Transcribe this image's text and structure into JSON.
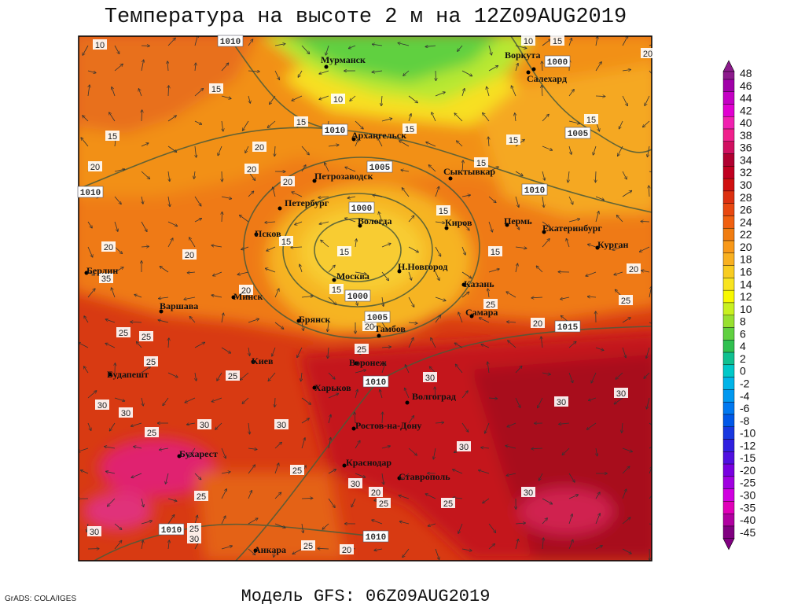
{
  "title": "Температура на высоте 2 м на 12Z09AUG2019",
  "subtitle": "Модель GFS: 06Z09AUG2019",
  "credit": "GrADS: COLA/IGES",
  "cities": [
    "Мурманск",
    "Воркута",
    "Салехард",
    "Архангельск",
    "Петрозаводск",
    "Сыктывкар",
    "Петербург",
    "Вологда",
    "Киров",
    "Пермь",
    "Екатеринбург",
    "Псков",
    "Курган",
    "Берлин",
    "Москва",
    "Н.Новгород",
    "Казань",
    "Варшава",
    "Минск",
    "Самара",
    "Брянск",
    "Тамбов",
    "Воронеж",
    "Киев",
    "Будапешт",
    "Харьков",
    "Волгоград",
    "Ростов-на-Дону",
    "Бухарест",
    "Краснодар",
    "Ставрополь",
    "Анкара"
  ],
  "isobar_labels": [
    1010,
    1000,
    1010,
    1005,
    1010,
    1000,
    1010,
    1005,
    1000,
    1005,
    1015,
    1010,
    1010,
    1010
  ],
  "isotherm_labels": [
    10,
    10,
    15,
    20,
    15,
    10,
    15,
    15,
    15,
    15,
    15,
    20,
    20,
    20,
    15,
    20,
    15,
    20,
    20,
    15,
    15,
    15,
    20,
    35,
    15,
    20,
    25,
    25,
    20,
    20,
    25,
    25,
    25,
    25,
    25,
    30,
    30,
    30,
    30,
    30,
    25,
    30,
    30,
    30,
    25,
    30,
    20,
    25,
    25,
    30,
    25,
    30,
    25,
    30,
    25,
    20
  ],
  "colorbar": {
    "levels": [
      {
        "value": 48,
        "color": "#8c1a8c"
      },
      {
        "value": 46,
        "color": "#a000a8"
      },
      {
        "value": 44,
        "color": "#c400c4"
      },
      {
        "value": 42,
        "color": "#e000d0"
      },
      {
        "value": 40,
        "color": "#f020b0"
      },
      {
        "value": 38,
        "color": "#f0208c"
      },
      {
        "value": 36,
        "color": "#d01060"
      },
      {
        "value": 34,
        "color": "#b00030"
      },
      {
        "value": 32,
        "color": "#c00020"
      },
      {
        "value": 30,
        "color": "#d01010"
      },
      {
        "value": 28,
        "color": "#dc3010"
      },
      {
        "value": 26,
        "color": "#e84810"
      },
      {
        "value": 24,
        "color": "#f06010"
      },
      {
        "value": 22,
        "color": "#f07c10"
      },
      {
        "value": 20,
        "color": "#f89818"
      },
      {
        "value": 18,
        "color": "#f8b020"
      },
      {
        "value": 16,
        "color": "#f8cc20"
      },
      {
        "value": 14,
        "color": "#f8e420"
      },
      {
        "value": 12,
        "color": "#f8f800"
      },
      {
        "value": 10,
        "color": "#c8f020"
      },
      {
        "value": 8,
        "color": "#98e030"
      },
      {
        "value": 6,
        "color": "#60d040"
      },
      {
        "value": 4,
        "color": "#30c050"
      },
      {
        "value": 2,
        "color": "#10c090"
      },
      {
        "value": 0,
        "color": "#00c8c8"
      },
      {
        "value": -2,
        "color": "#00b4e8"
      },
      {
        "value": -4,
        "color": "#0098f0"
      },
      {
        "value": -6,
        "color": "#0078f0"
      },
      {
        "value": -8,
        "color": "#0058e8"
      },
      {
        "value": -10,
        "color": "#1838e0"
      },
      {
        "value": -12,
        "color": "#3020e0"
      },
      {
        "value": -15,
        "color": "#5010e0"
      },
      {
        "value": -20,
        "color": "#7800e0"
      },
      {
        "value": -25,
        "color": "#a000e0"
      },
      {
        "value": -30,
        "color": "#d000e0"
      },
      {
        "value": -35,
        "color": "#e000b8"
      },
      {
        "value": -40,
        "color": "#b000a0"
      },
      {
        "value": -45,
        "color": "#800080"
      }
    ]
  }
}
